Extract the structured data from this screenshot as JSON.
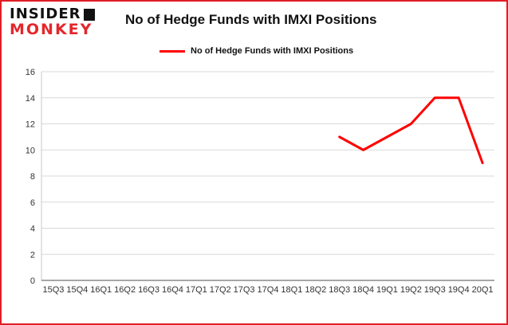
{
  "logo": {
    "line1": "INSIDER",
    "line2": "MONKEY"
  },
  "header": {
    "title": "No of Hedge Funds with IMXI Positions"
  },
  "legend": {
    "label": "No of Hedge Funds with IMXI Positions"
  },
  "colors": {
    "line": "#ff0000",
    "border": "#e01e25",
    "grid": "#d9d9d9",
    "axis": "#c8c8c8",
    "baseline": "#4d4d4d",
    "text": "#333333",
    "logo_red": "#e4262c"
  },
  "chart_data": {
    "type": "line",
    "title": "No of Hedge Funds with IMXI Positions",
    "xlabel": "",
    "ylabel": "",
    "ylim": [
      0,
      16
    ],
    "yticks": [
      0,
      2,
      4,
      6,
      8,
      10,
      12,
      14,
      16
    ],
    "grid": true,
    "legend_position": "top",
    "categories": [
      "15Q3",
      "15Q4",
      "16Q1",
      "16Q2",
      "16Q3",
      "16Q4",
      "17Q1",
      "17Q2",
      "17Q3",
      "17Q4",
      "18Q1",
      "18Q2",
      "18Q3",
      "18Q4",
      "19Q1",
      "19Q2",
      "19Q3",
      "19Q4",
      "20Q1"
    ],
    "series": [
      {
        "name": "No of Hedge Funds with IMXI Positions",
        "color": "#ff0000",
        "values": [
          null,
          null,
          null,
          null,
          null,
          null,
          null,
          null,
          null,
          null,
          null,
          null,
          11,
          10,
          11,
          12,
          14,
          14,
          9
        ]
      }
    ]
  }
}
